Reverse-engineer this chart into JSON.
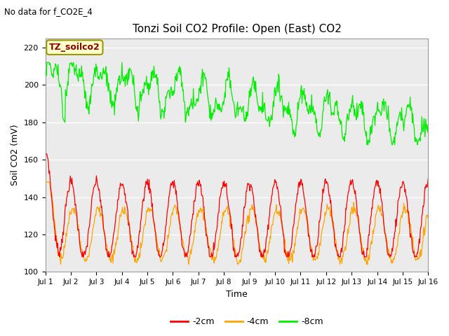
{
  "title": "Tonzi Soil CO2 Profile: Open (East) CO2",
  "subtitle": "No data for f_CO2E_4",
  "ylabel": "Soil CO2 (mV)",
  "xlabel": "Time",
  "legend_label": "TZ_soilco2",
  "ylim": [
    100,
    225
  ],
  "yticks": [
    100,
    120,
    140,
    160,
    180,
    200,
    220
  ],
  "xtick_labels": [
    "Jul 1",
    "Jul 2",
    "Jul 3",
    "Jul 4",
    "Jul 5",
    "Jul 6",
    "Jul 7",
    "Jul 8",
    "Jul 9",
    "Jul 10",
    "Jul 11",
    "Jul 12",
    "Jul 13",
    "Jul 14",
    "Jul 15",
    "Jul 16"
  ],
  "color_2cm": "#ff0000",
  "color_4cm": "#ffa500",
  "color_8cm": "#00ee00",
  "bg_color": "#ffffff",
  "plot_bg_color": "#ebebeb",
  "legend_entries": [
    "-2cm",
    "-4cm",
    "-8cm"
  ],
  "n_points": 720
}
